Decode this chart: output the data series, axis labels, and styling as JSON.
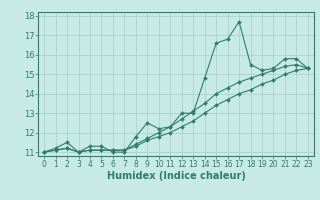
{
  "xlabel": "Humidex (Indice chaleur)",
  "xlim": [
    -0.5,
    23.5
  ],
  "ylim": [
    10.8,
    18.2
  ],
  "xticks": [
    0,
    1,
    2,
    3,
    4,
    5,
    6,
    7,
    8,
    9,
    10,
    11,
    12,
    13,
    14,
    15,
    16,
    17,
    18,
    19,
    20,
    21,
    22,
    23
  ],
  "yticks": [
    11,
    12,
    13,
    14,
    15,
    16,
    17,
    18
  ],
  "bg_color": "#c8eae4",
  "line_color": "#2e7d6e",
  "grid_color": "#a8ccc8",
  "series": [
    [
      11.0,
      11.2,
      11.5,
      11.0,
      11.3,
      11.3,
      11.0,
      11.0,
      11.8,
      12.5,
      12.2,
      12.3,
      13.0,
      13.0,
      14.8,
      16.6,
      16.8,
      17.7,
      15.5,
      15.2,
      15.3,
      15.8,
      15.8,
      15.3
    ],
    [
      11.0,
      11.1,
      11.2,
      11.0,
      11.1,
      11.1,
      11.1,
      11.1,
      11.3,
      11.6,
      11.8,
      12.0,
      12.3,
      12.6,
      13.0,
      13.4,
      13.7,
      14.0,
      14.2,
      14.5,
      14.7,
      15.0,
      15.2,
      15.3
    ],
    [
      11.0,
      11.1,
      11.2,
      11.0,
      11.1,
      11.1,
      11.1,
      11.1,
      11.4,
      11.7,
      12.0,
      12.3,
      12.7,
      13.1,
      13.5,
      14.0,
      14.3,
      14.6,
      14.8,
      15.0,
      15.2,
      15.4,
      15.5,
      15.3
    ]
  ],
  "tick_fontsize": 5.5,
  "xlabel_fontsize": 7
}
